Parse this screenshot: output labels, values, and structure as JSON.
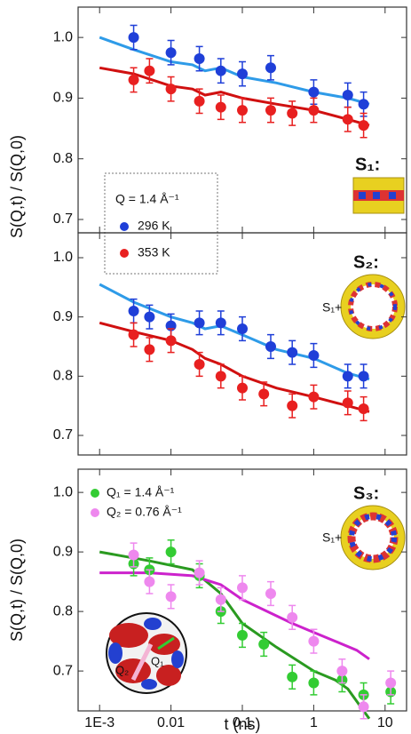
{
  "chart_data": [
    {
      "type": "scatter",
      "log_x": true,
      "xlim": [
        0.0005,
        20
      ],
      "ylim": [
        0.678,
        1.05
      ],
      "xticks": [
        0.001,
        0.01,
        0.1,
        1,
        10
      ],
      "yticks": [
        {
          "value": 0.7,
          "label": "0.7"
        },
        {
          "value": 0.8,
          "label": "0.8"
        },
        {
          "value": 0.9,
          "label": "0.9"
        },
        {
          "value": 1.0,
          "label": "1.0"
        }
      ],
      "y_label": "S(Q,t) / S(Q,0)",
      "panel_label": "S₁:",
      "legend_title": "Q = 1.4 Å⁻¹",
      "series": [
        {
          "name": "296 K",
          "color": "#1f3fd8",
          "x": [
            0.003,
            0.01,
            0.025,
            0.05,
            0.1,
            0.25,
            1,
            3,
            5
          ],
          "values": [
            1.0,
            0.975,
            0.965,
            0.945,
            0.94,
            0.95,
            0.91,
            0.905,
            0.89
          ],
          "errors": [
            0.02,
            0.02,
            0.02,
            0.02,
            0.02,
            0.02,
            0.02,
            0.02,
            0.02
          ]
        },
        {
          "name": "353 K",
          "color": "#e82020",
          "x": [
            0.003,
            0.005,
            0.01,
            0.025,
            0.05,
            0.1,
            0.25,
            0.5,
            1,
            3,
            5
          ],
          "values": [
            0.93,
            0.945,
            0.915,
            0.895,
            0.885,
            0.88,
            0.88,
            0.875,
            0.88,
            0.865,
            0.855
          ],
          "errors": [
            0.02,
            0.02,
            0.02,
            0.02,
            0.02,
            0.02,
            0.02,
            0.02,
            0.02,
            0.02,
            0.02
          ]
        }
      ],
      "fits": [
        {
          "color": "#2e9be8",
          "x": [
            0.001,
            0.003,
            0.01,
            0.02,
            0.03,
            0.05,
            0.1,
            0.3,
            1,
            3,
            6
          ],
          "values": [
            1.0,
            0.98,
            0.96,
            0.955,
            0.945,
            0.95,
            0.935,
            0.925,
            0.91,
            0.9,
            0.89
          ]
        },
        {
          "color": "#d01010",
          "x": [
            0.001,
            0.003,
            0.01,
            0.02,
            0.03,
            0.05,
            0.1,
            0.3,
            1,
            3,
            6
          ],
          "values": [
            0.95,
            0.94,
            0.92,
            0.915,
            0.905,
            0.91,
            0.9,
            0.89,
            0.88,
            0.865,
            0.855
          ]
        }
      ]
    },
    {
      "type": "scatter",
      "log_x": true,
      "xlim": [
        0.0005,
        20
      ],
      "ylim": [
        0.667,
        1.042
      ],
      "xticks": [
        0.001,
        0.01,
        0.1,
        1,
        10
      ],
      "yticks": [
        {
          "value": 0.7,
          "label": "0.7"
        },
        {
          "value": 0.8,
          "label": "0.8"
        },
        {
          "value": 0.9,
          "label": "0.9"
        },
        {
          "value": 1.0,
          "label": "1.0"
        }
      ],
      "panel_label": "S₂:",
      "panel_prefix": "S₁+",
      "series": [
        {
          "color": "#1f3fd8",
          "x": [
            0.003,
            0.005,
            0.01,
            0.025,
            0.05,
            0.1,
            0.25,
            0.5,
            1,
            3,
            5
          ],
          "values": [
            0.91,
            0.9,
            0.885,
            0.89,
            0.89,
            0.88,
            0.85,
            0.84,
            0.835,
            0.8,
            0.8
          ],
          "errors": [
            0.02,
            0.02,
            0.02,
            0.02,
            0.02,
            0.02,
            0.02,
            0.02,
            0.02,
            0.02,
            0.02
          ]
        },
        {
          "color": "#e82020",
          "x": [
            0.003,
            0.005,
            0.01,
            0.025,
            0.05,
            0.1,
            0.2,
            0.5,
            1,
            3,
            5
          ],
          "values": [
            0.87,
            0.845,
            0.86,
            0.82,
            0.8,
            0.78,
            0.77,
            0.75,
            0.765,
            0.755,
            0.745
          ],
          "errors": [
            0.02,
            0.02,
            0.02,
            0.02,
            0.02,
            0.02,
            0.02,
            0.02,
            0.02,
            0.02,
            0.02
          ]
        }
      ],
      "fits": [
        {
          "color": "#2e9be8",
          "x": [
            0.001,
            0.003,
            0.01,
            0.02,
            0.03,
            0.05,
            0.1,
            0.3,
            1,
            3,
            6
          ],
          "values": [
            0.955,
            0.925,
            0.9,
            0.89,
            0.88,
            0.885,
            0.87,
            0.845,
            0.83,
            0.805,
            0.795
          ]
        },
        {
          "color": "#d01010",
          "x": [
            0.001,
            0.003,
            0.01,
            0.02,
            0.03,
            0.05,
            0.1,
            0.3,
            1,
            3,
            6
          ],
          "values": [
            0.89,
            0.875,
            0.86,
            0.845,
            0.83,
            0.82,
            0.8,
            0.78,
            0.765,
            0.75,
            0.74
          ]
        }
      ]
    },
    {
      "type": "scatter",
      "log_x": true,
      "xlim": [
        0.0005,
        20
      ],
      "ylim": [
        0.633,
        1.039
      ],
      "xticks": [
        {
          "value": 0.001,
          "label": "1E-3"
        },
        0.01,
        0.1,
        1,
        10
      ],
      "yticks": [
        {
          "value": 0.7,
          "label": "0.7"
        },
        {
          "value": 0.8,
          "label": "0.8"
        },
        {
          "value": 0.9,
          "label": "0.9"
        },
        {
          "value": 1.0,
          "label": "1.0"
        }
      ],
      "x_label": "t (ns)",
      "y_label": "S(Q,t) / S(Q,0)",
      "panel_label": "S₃:",
      "panel_prefix": "S₁+",
      "inset_labels": [
        "Q₂",
        "Q₁"
      ],
      "series": [
        {
          "name": "Q₁ = 1.4 Å⁻¹",
          "color": "#33cc33",
          "x": [
            0.003,
            0.005,
            0.01,
            0.025,
            0.05,
            0.1,
            0.2,
            0.5,
            1,
            2.5,
            5,
            12
          ],
          "values": [
            0.88,
            0.87,
            0.9,
            0.86,
            0.8,
            0.76,
            0.745,
            0.69,
            0.68,
            0.685,
            0.66,
            0.665
          ],
          "errors": [
            0.02,
            0.02,
            0.02,
            0.02,
            0.02,
            0.02,
            0.02,
            0.02,
            0.02,
            0.02,
            0.02,
            0.02
          ]
        },
        {
          "name": "Q₂ = 0.76 Å⁻¹",
          "color": "#ee88ee",
          "x": [
            0.003,
            0.005,
            0.01,
            0.025,
            0.05,
            0.1,
            0.25,
            0.5,
            1,
            2.5,
            5,
            12
          ],
          "values": [
            0.895,
            0.85,
            0.825,
            0.865,
            0.82,
            0.84,
            0.83,
            0.79,
            0.75,
            0.7,
            0.64,
            0.68
          ],
          "errors": [
            0.02,
            0.02,
            0.02,
            0.02,
            0.02,
            0.02,
            0.02,
            0.02,
            0.02,
            0.02,
            0.02,
            0.02
          ]
        }
      ],
      "fits": [
        {
          "color": "#2a9a20",
          "x": [
            0.001,
            0.005,
            0.02,
            0.05,
            0.1,
            0.3,
            1,
            2,
            3,
            6
          ],
          "values": [
            0.9,
            0.885,
            0.87,
            0.83,
            0.78,
            0.74,
            0.7,
            0.685,
            0.67,
            0.62
          ]
        },
        {
          "color": "#cc22cc",
          "x": [
            0.001,
            0.005,
            0.02,
            0.05,
            0.1,
            0.5,
            1,
            2,
            4,
            6
          ],
          "values": [
            0.865,
            0.865,
            0.86,
            0.845,
            0.82,
            0.78,
            0.765,
            0.75,
            0.735,
            0.72
          ]
        }
      ]
    }
  ]
}
